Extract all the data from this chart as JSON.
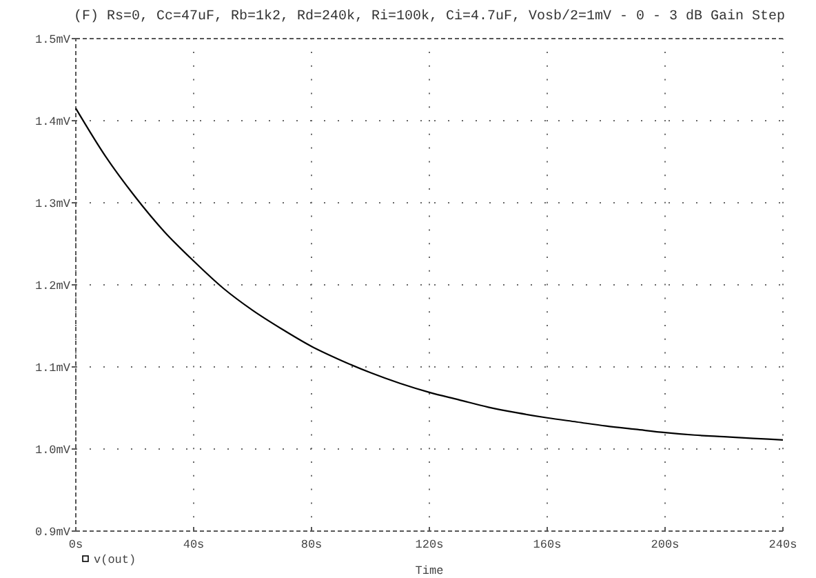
{
  "chart_data": {
    "type": "line",
    "title": "(F) Rs=0, Cc=47uF, Rb=1k2, Rd=240k, Ri=100k, Ci=4.7uF, Vosb/2=1mV - 0 - 3 dB Gain Step",
    "xlabel": "Time",
    "x": [
      0,
      10,
      20,
      30,
      40,
      50,
      60,
      70,
      80,
      90,
      100,
      110,
      120,
      130,
      140,
      150,
      160,
      170,
      180,
      190,
      200,
      210,
      220,
      230,
      240
    ],
    "series": [
      {
        "name": "v(out)",
        "color": "#000000",
        "values": [
          1.415,
          1.357,
          1.308,
          1.265,
          1.229,
          1.196,
          1.169,
          1.146,
          1.125,
          1.108,
          1.093,
          1.08,
          1.069,
          1.06,
          1.051,
          1.044,
          1.038,
          1.033,
          1.028,
          1.024,
          1.02,
          1.017,
          1.015,
          1.013,
          1.011
        ]
      }
    ],
    "xlim": [
      0,
      240
    ],
    "xticks": [
      {
        "value": 0,
        "label": "0s"
      },
      {
        "value": 40,
        "label": "40s"
      },
      {
        "value": 80,
        "label": "80s"
      },
      {
        "value": 120,
        "label": "120s"
      },
      {
        "value": 160,
        "label": "160s"
      },
      {
        "value": 200,
        "label": "200s"
      },
      {
        "value": 240,
        "label": "240s"
      }
    ],
    "ylim": [
      0.9,
      1.5
    ],
    "yticks": [
      {
        "value": 0.9,
        "label": "0.9mV"
      },
      {
        "value": 1.0,
        "label": "1.0mV"
      },
      {
        "value": 1.1,
        "label": "1.1mV"
      },
      {
        "value": 1.2,
        "label": "1.2mV"
      },
      {
        "value": 1.3,
        "label": "1.3mV"
      },
      {
        "value": 1.4,
        "label": "1.4mV"
      },
      {
        "value": 1.5,
        "label": "1.5mV"
      }
    ],
    "grid": true,
    "legend": "bottom left",
    "marker": "none",
    "line_style": "solid"
  }
}
